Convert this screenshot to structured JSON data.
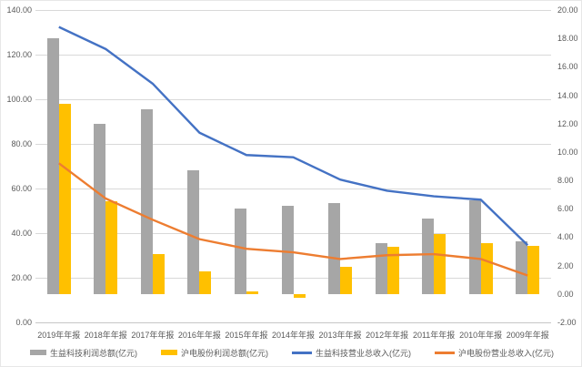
{
  "chart_data": {
    "type": "bar",
    "subtype": "combo-bar-line-dual-axis",
    "title": "",
    "categories": [
      "2019年年报",
      "2018年年报",
      "2017年年报",
      "2016年年报",
      "2015年年报",
      "2014年年报",
      "2013年年报",
      "2012年年报",
      "2011年年报",
      "2010年年报",
      "2009年年报"
    ],
    "series": [
      {
        "name": "生益科技利润总额(亿元)",
        "type": "bar",
        "axis": "right",
        "color": "#a6a6a6",
        "values": [
          18.0,
          12.0,
          13.0,
          8.7,
          6.0,
          6.2,
          6.4,
          3.6,
          5.3,
          6.6,
          3.7
        ]
      },
      {
        "name": "沪电股份利润总额(亿元)",
        "type": "bar",
        "axis": "right",
        "color": "#ffc000",
        "values": [
          13.4,
          6.5,
          2.8,
          1.6,
          0.2,
          -0.25,
          1.9,
          3.3,
          4.2,
          3.6,
          3.4
        ]
      },
      {
        "name": "生益科技营业总收入(亿元)",
        "type": "line",
        "axis": "left",
        "color": "#4472c4",
        "values": [
          132.4,
          122.5,
          107.0,
          85.0,
          75.0,
          74.0,
          64.0,
          59.0,
          56.5,
          55.0,
          34.6
        ]
      },
      {
        "name": "沪电股份营业总收入(亿元)",
        "type": "line",
        "axis": "left",
        "color": "#ed7d31",
        "values": [
          71.3,
          55.5,
          46.0,
          37.3,
          33.0,
          31.4,
          28.4,
          30.1,
          30.6,
          28.4,
          21.0
        ]
      }
    ],
    "left_axis": {
      "min": 0,
      "max": 140,
      "step": 20,
      "tick_format": "0.00",
      "tick_labels": [
        "0.00",
        "20.00",
        "40.00",
        "60.00",
        "80.00",
        "100.00",
        "120.00",
        "140.00"
      ]
    },
    "right_axis": {
      "min": -2,
      "max": 20,
      "step": 2,
      "tick_format": "0.00",
      "tick_labels": [
        "-2.00",
        "0.00",
        "2.00",
        "4.00",
        "6.00",
        "8.00",
        "10.00",
        "12.00",
        "14.00",
        "16.00",
        "18.00",
        "20.00"
      ]
    },
    "grid": true,
    "gridline_source": "left_axis",
    "legend_position": "bottom",
    "legend": [
      {
        "swatch": "bar",
        "color": "#a6a6a6",
        "label": "生益科技利润总额(亿元)"
      },
      {
        "swatch": "bar",
        "color": "#ffc000",
        "label": "沪电股份利润总额(亿元)"
      },
      {
        "swatch": "line",
        "color": "#4472c4",
        "label": "生益科技营业总收入(亿元)"
      },
      {
        "swatch": "line",
        "color": "#ed7d31",
        "label": "沪电股份营业总收入(亿元)"
      }
    ]
  },
  "colors": {
    "background": "#ffffff",
    "gridline": "#d9d9d9",
    "axis_line": "#c6c6c6",
    "tick_text": "#595959",
    "bar_gray": "#a6a6a6",
    "bar_yellow": "#ffc000",
    "line_blue": "#4472c4",
    "line_orange": "#ed7d31"
  }
}
